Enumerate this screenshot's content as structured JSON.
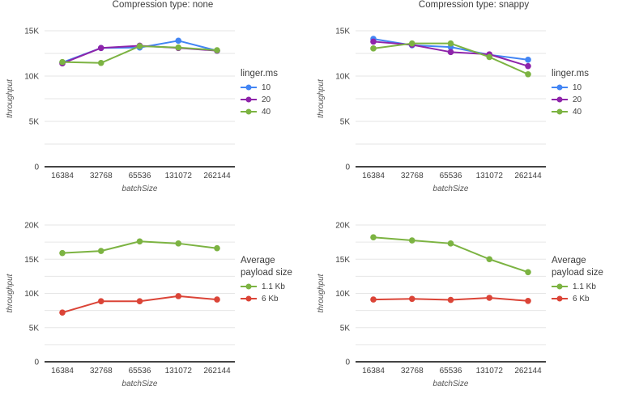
{
  "chart_data": [
    {
      "type": "line",
      "title": "Compression type: none",
      "legend_title": "linger.ms",
      "legend_position": "right",
      "xlabel": "batchSize",
      "ylabel": "throughput",
      "categories": [
        "16384",
        "32768",
        "65536",
        "131072",
        "262144"
      ],
      "ylim": [
        0,
        15000
      ],
      "ytick_step": 5000,
      "minor_step": 2500,
      "yticks": [
        "0",
        "5K",
        "10K",
        "15K"
      ],
      "grid": true,
      "series": [
        {
          "name": "10",
          "color": "#4285f4",
          "values": [
            11500,
            13100,
            13150,
            13900,
            12800
          ]
        },
        {
          "name": "20",
          "color": "#8e24aa",
          "values": [
            11400,
            13100,
            13350,
            13100,
            12800
          ]
        },
        {
          "name": "40",
          "color": "#7cb342",
          "values": [
            11550,
            11450,
            13300,
            13150,
            12850
          ]
        }
      ]
    },
    {
      "type": "line",
      "title": "Compression type: snappy",
      "legend_title": "linger.ms",
      "legend_position": "right",
      "xlabel": "batchSize",
      "ylabel": "throughput",
      "categories": [
        "16384",
        "32768",
        "65536",
        "131072",
        "262144"
      ],
      "ylim": [
        0,
        15000
      ],
      "ytick_step": 5000,
      "minor_step": 2500,
      "yticks": [
        "0",
        "5K",
        "10K",
        "15K"
      ],
      "grid": true,
      "series": [
        {
          "name": "10",
          "color": "#4285f4",
          "values": [
            14100,
            13400,
            13200,
            12350,
            11800
          ]
        },
        {
          "name": "20",
          "color": "#8e24aa",
          "values": [
            13800,
            13450,
            12650,
            12400,
            11100
          ]
        },
        {
          "name": "40",
          "color": "#7cb342",
          "values": [
            13050,
            13600,
            13600,
            12100,
            10200
          ]
        }
      ]
    },
    {
      "type": "line",
      "title": "",
      "legend_title": "Average payload size",
      "legend_position": "right",
      "xlabel": "batchSize",
      "ylabel": "throughput",
      "categories": [
        "16384",
        "32768",
        "65536",
        "131072",
        "262144"
      ],
      "ylim": [
        0,
        20000
      ],
      "ytick_step": 5000,
      "minor_step": 2500,
      "yticks": [
        "0",
        "5K",
        "10K",
        "15K",
        "20K"
      ],
      "grid": true,
      "series": [
        {
          "name": "1.1 Kb",
          "color": "#7cb342",
          "values": [
            15900,
            16200,
            17600,
            17300,
            16600
          ]
        },
        {
          "name": "6 Kb",
          "color": "#db4437",
          "values": [
            7200,
            8850,
            8850,
            9600,
            9100
          ]
        }
      ]
    },
    {
      "type": "line",
      "title": "",
      "legend_title": "Average payload size",
      "legend_position": "right",
      "xlabel": "batchSize",
      "ylabel": "throughput",
      "categories": [
        "16384",
        "32768",
        "65536",
        "131072",
        "262144"
      ],
      "ylim": [
        0,
        20000
      ],
      "ytick_step": 5000,
      "minor_step": 2500,
      "yticks": [
        "0",
        "5K",
        "10K",
        "15K",
        "20K"
      ],
      "grid": true,
      "series": [
        {
          "name": "1.1 Kb",
          "color": "#7cb342",
          "values": [
            18200,
            17750,
            17300,
            15000,
            13100
          ]
        },
        {
          "name": "6 Kb",
          "color": "#db4437",
          "values": [
            9100,
            9200,
            9050,
            9350,
            8900
          ]
        }
      ]
    }
  ]
}
